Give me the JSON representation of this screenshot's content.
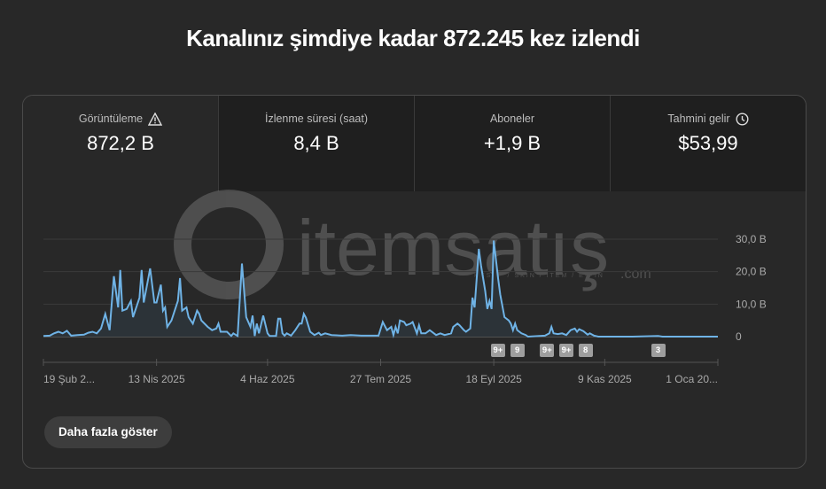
{
  "header": {
    "title": "Kanalınız şimdiye kadar 872.245 kez izlendi"
  },
  "tabs": [
    {
      "label": "Görüntüleme",
      "value": "872,2 B",
      "icon": "warning-icon",
      "selected": true
    },
    {
      "label": "İzlenme süresi (saat)",
      "value": "8,4 B"
    },
    {
      "label": "Aboneler",
      "value": "+1,9 B"
    },
    {
      "label": "Tahmini gelir",
      "value": "$53,99",
      "icon": "clock-icon"
    }
  ],
  "watermark": {
    "text": "itemsatış",
    "subtext": "HESAP / SKIN / ITEM / E-PIN",
    "domain": ".com"
  },
  "more_button": "Daha fazla göster",
  "colors": {
    "line": "#6fb3e6",
    "fill": "#2c3338",
    "grid": "#3a3a3a",
    "badge": "#9e9e9e"
  },
  "chart_data": {
    "type": "area",
    "title": "Görüntüleme",
    "xlabel": "",
    "ylabel": "",
    "x_unit": "days since 19 Şub 2025",
    "xlim": [
      0,
      316
    ],
    "ylim": [
      0,
      30
    ],
    "yticks": [
      {
        "v": 0,
        "label": "0"
      },
      {
        "v": 10,
        "label": "10,0 B"
      },
      {
        "v": 20,
        "label": "20,0 B"
      },
      {
        "v": 30,
        "label": "30,0 B"
      }
    ],
    "xticks": [
      {
        "d": 0,
        "label": "19 Şub 2..."
      },
      {
        "d": 53,
        "label": "13 Nis 2025"
      },
      {
        "d": 105,
        "label": "4 Haz 2025"
      },
      {
        "d": 158,
        "label": "27 Tem 2025"
      },
      {
        "d": 211,
        "label": "18 Eyl 2025"
      },
      {
        "d": 263,
        "label": "9 Kas 2025"
      },
      {
        "d": 316,
        "label": "1 Oca 20..."
      }
    ],
    "badges": [
      {
        "d": 213,
        "label": "9+"
      },
      {
        "d": 222,
        "label": "9"
      },
      {
        "d": 236,
        "label": "9+"
      },
      {
        "d": 245,
        "label": "9+"
      },
      {
        "d": 254,
        "label": "8"
      },
      {
        "d": 288,
        "label": "3"
      }
    ],
    "points": [
      [
        0,
        0.2
      ],
      [
        3,
        0.3
      ],
      [
        5,
        1
      ],
      [
        7,
        1.5
      ],
      [
        9,
        1
      ],
      [
        11,
        1.8
      ],
      [
        13,
        0.3
      ],
      [
        16,
        0.5
      ],
      [
        19,
        0.6
      ],
      [
        21,
        1.2
      ],
      [
        23,
        1.5
      ],
      [
        25,
        1
      ],
      [
        27,
        2.5
      ],
      [
        29,
        7
      ],
      [
        31,
        2
      ],
      [
        33,
        18.6
      ],
      [
        35,
        9
      ],
      [
        36,
        20.5
      ],
      [
        37,
        8
      ],
      [
        39,
        8.5
      ],
      [
        41,
        11
      ],
      [
        42,
        6
      ],
      [
        44,
        10
      ],
      [
        45,
        12
      ],
      [
        46,
        20.5
      ],
      [
        47,
        10.5
      ],
      [
        50,
        21
      ],
      [
        52,
        10.5
      ],
      [
        53,
        10.5
      ],
      [
        55,
        16
      ],
      [
        56,
        8
      ],
      [
        57,
        9
      ],
      [
        58,
        3
      ],
      [
        60,
        5
      ],
      [
        63,
        11
      ],
      [
        64,
        18
      ],
      [
        65,
        8
      ],
      [
        67,
        9
      ],
      [
        68,
        6
      ],
      [
        70,
        4
      ],
      [
        72,
        8
      ],
      [
        73,
        7
      ],
      [
        74,
        5
      ],
      [
        77,
        3
      ],
      [
        79,
        2
      ],
      [
        81,
        2.5
      ],
      [
        82,
        4
      ],
      [
        83,
        1.5
      ],
      [
        86,
        1.5
      ],
      [
        88,
        0.2
      ],
      [
        89,
        1
      ],
      [
        91,
        0.2
      ],
      [
        93,
        22.5
      ],
      [
        95,
        6
      ],
      [
        97,
        3
      ],
      [
        98,
        6.5
      ],
      [
        99,
        0.2
      ],
      [
        100,
        4
      ],
      [
        101,
        1
      ],
      [
        103,
        6.5
      ],
      [
        105,
        1
      ],
      [
        106,
        0.2
      ],
      [
        109,
        0.2
      ],
      [
        110,
        5.5
      ],
      [
        111,
        5.5
      ],
      [
        112,
        1
      ],
      [
        113,
        0.3
      ],
      [
        114,
        1
      ],
      [
        116,
        0.3
      ],
      [
        118,
        2
      ],
      [
        120,
        4
      ],
      [
        121,
        4
      ],
      [
        122,
        7
      ],
      [
        123,
        5.8
      ],
      [
        125,
        1.5
      ],
      [
        127,
        0.5
      ],
      [
        129,
        1.2
      ],
      [
        130,
        0.5
      ],
      [
        132,
        1
      ],
      [
        135,
        0.5
      ],
      [
        140,
        0.3
      ],
      [
        144,
        0.5
      ],
      [
        149,
        0.3
      ],
      [
        153,
        0.3
      ],
      [
        157,
        0.3
      ],
      [
        159,
        4.5
      ],
      [
        161,
        2
      ],
      [
        163,
        3
      ],
      [
        164,
        0.5
      ],
      [
        165,
        3
      ],
      [
        166,
        1
      ],
      [
        167,
        5
      ],
      [
        169,
        4.5
      ],
      [
        170,
        3.5
      ],
      [
        172,
        4
      ],
      [
        173,
        4.5
      ],
      [
        175,
        1
      ],
      [
        176,
        3.5
      ],
      [
        177,
        1
      ],
      [
        179,
        1
      ],
      [
        181,
        2
      ],
      [
        184,
        0.5
      ],
      [
        186,
        1
      ],
      [
        188,
        0.5
      ],
      [
        191,
        1
      ],
      [
        192,
        3
      ],
      [
        194,
        4
      ],
      [
        195,
        3.5
      ],
      [
        197,
        2
      ],
      [
        198,
        1.5
      ],
      [
        200,
        2.5
      ],
      [
        201,
        12
      ],
      [
        202,
        9
      ],
      [
        204,
        27
      ],
      [
        205,
        22
      ],
      [
        207,
        14
      ],
      [
        208,
        8.5
      ],
      [
        209,
        11
      ],
      [
        210,
        8.5
      ],
      [
        211,
        29.6
      ],
      [
        213,
        18
      ],
      [
        214,
        13
      ],
      [
        216,
        6
      ],
      [
        218,
        5
      ],
      [
        219,
        4
      ],
      [
        220,
        2
      ],
      [
        221,
        4
      ],
      [
        222,
        2
      ],
      [
        224,
        1
      ],
      [
        226,
        0.5
      ],
      [
        227,
        0
      ],
      [
        235,
        0.3
      ],
      [
        237,
        1
      ],
      [
        238,
        3
      ],
      [
        239,
        1
      ],
      [
        241,
        0.8
      ],
      [
        243,
        1
      ],
      [
        245,
        0.5
      ],
      [
        247,
        2
      ],
      [
        249,
        2.5
      ],
      [
        250,
        1.5
      ],
      [
        251,
        2.3
      ],
      [
        253,
        1.7
      ],
      [
        255,
        0.6
      ],
      [
        256,
        1
      ],
      [
        258,
        0.3
      ],
      [
        260,
        0
      ],
      [
        276,
        0
      ],
      [
        288,
        0.2
      ],
      [
        290,
        0
      ],
      [
        316,
        0
      ]
    ]
  }
}
